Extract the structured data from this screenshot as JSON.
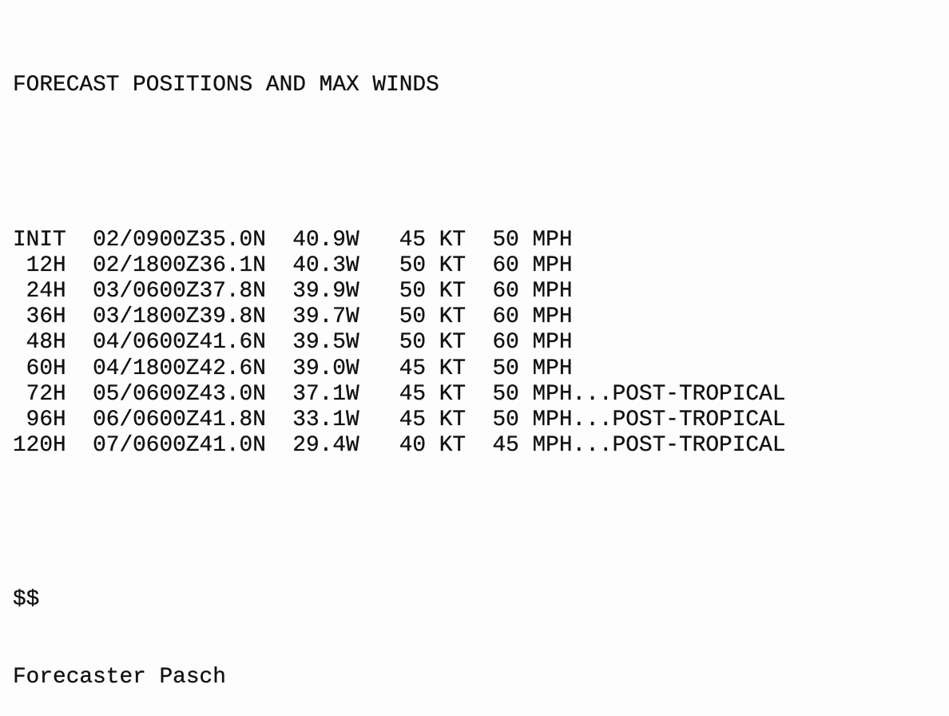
{
  "heading": "FORECAST POSITIONS AND MAX WINDS",
  "rows": [
    {
      "hour": "INIT",
      "time": "02/0900Z",
      "lat": "35.0N",
      "lon": "40.9W",
      "kt": "45 KT",
      "mph": "50 MPH",
      "note": ""
    },
    {
      "hour": "12H",
      "time": "02/1800Z",
      "lat": "36.1N",
      "lon": "40.3W",
      "kt": "50 KT",
      "mph": "60 MPH",
      "note": ""
    },
    {
      "hour": "24H",
      "time": "03/0600Z",
      "lat": "37.8N",
      "lon": "39.9W",
      "kt": "50 KT",
      "mph": "60 MPH",
      "note": ""
    },
    {
      "hour": "36H",
      "time": "03/1800Z",
      "lat": "39.8N",
      "lon": "39.7W",
      "kt": "50 KT",
      "mph": "60 MPH",
      "note": ""
    },
    {
      "hour": "48H",
      "time": "04/0600Z",
      "lat": "41.6N",
      "lon": "39.5W",
      "kt": "50 KT",
      "mph": "60 MPH",
      "note": ""
    },
    {
      "hour": "60H",
      "time": "04/1800Z",
      "lat": "42.6N",
      "lon": "39.0W",
      "kt": "45 KT",
      "mph": "50 MPH",
      "note": ""
    },
    {
      "hour": "72H",
      "time": "05/0600Z",
      "lat": "43.0N",
      "lon": "37.1W",
      "kt": "45 KT",
      "mph": "50 MPH",
      "note": "...POST-TROPICAL"
    },
    {
      "hour": "96H",
      "time": "06/0600Z",
      "lat": "41.8N",
      "lon": "33.1W",
      "kt": "45 KT",
      "mph": "50 MPH",
      "note": "...POST-TROPICAL"
    },
    {
      "hour": "120H",
      "time": "07/0600Z",
      "lat": "41.0N",
      "lon": "29.4W",
      "kt": "40 KT",
      "mph": "45 MPH",
      "note": "...POST-TROPICAL"
    }
  ],
  "end_marker": "$$",
  "signature": "Forecaster Pasch"
}
